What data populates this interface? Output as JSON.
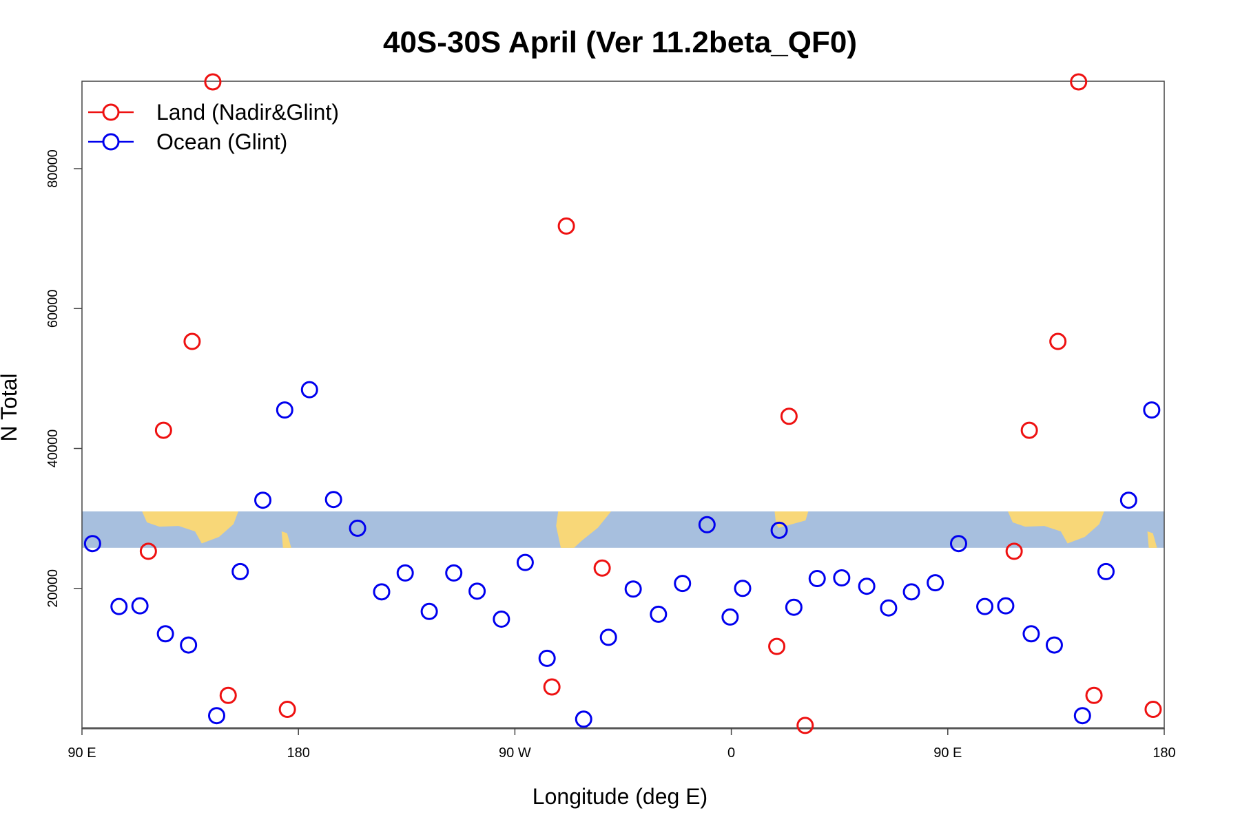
{
  "chart_data": {
    "type": "scatter",
    "title": "40S-30S April (Ver 11.2beta_QF0)",
    "xlabel": "Longitude (deg E)",
    "ylabel": "N Total",
    "x_ticks": [
      {
        "value": 90,
        "label": "90 E"
      },
      {
        "value": 180,
        "label": "180"
      },
      {
        "value": 270,
        "label": "90 W"
      },
      {
        "value": 360,
        "label": "0"
      },
      {
        "value": 450,
        "label": "90 E"
      },
      {
        "value": 540,
        "label": "180"
      }
    ],
    "y_ticks": [
      {
        "value": 20000,
        "label": "20000"
      },
      {
        "value": 40000,
        "label": "40000"
      },
      {
        "value": 60000,
        "label": "60000"
      },
      {
        "value": 80000,
        "label": "80000"
      }
    ],
    "xlim": [
      90,
      540
    ],
    "ylim": [
      0,
      92500
    ],
    "legend_position": "top-left",
    "colors": {
      "land": "#ee1111",
      "ocean": "#0000ee",
      "map_ocean": "#a7bfde",
      "map_land": "#f8d778"
    },
    "map_band": {
      "y_range": [
        25800,
        31000
      ]
    },
    "series": [
      {
        "name": "Land (Nadir&Glint)",
        "color": "#ee1111",
        "points": [
          [
            117.6,
            25300
          ],
          [
            123.9,
            42600
          ],
          [
            135.8,
            55300
          ],
          [
            144.4,
            92400
          ],
          [
            150.8,
            4700
          ],
          [
            175.4,
            2700
          ],
          [
            291.4,
            71800
          ],
          [
            285.4,
            5900
          ],
          [
            306.3,
            22900
          ],
          [
            378.9,
            11700
          ],
          [
            384.0,
            44600
          ],
          [
            390.7,
            400
          ],
          [
            477.6,
            25300
          ],
          [
            483.9,
            42600
          ],
          [
            495.8,
            55300
          ],
          [
            504.4,
            92400
          ],
          [
            510.8,
            4700
          ],
          [
            535.4,
            2700
          ]
        ]
      },
      {
        "name": "Ocean (Glint)",
        "color": "#0000ee",
        "points": [
          [
            94.4,
            26400
          ],
          [
            105.4,
            17400
          ],
          [
            114.1,
            17500
          ],
          [
            124.7,
            13500
          ],
          [
            134.3,
            11900
          ],
          [
            146.0,
            1800
          ],
          [
            155.8,
            22400
          ],
          [
            165.2,
            32600
          ],
          [
            174.3,
            45500
          ],
          [
            184.6,
            48400
          ],
          [
            194.6,
            32700
          ],
          [
            204.6,
            28600
          ],
          [
            214.6,
            19500
          ],
          [
            224.4,
            22200
          ],
          [
            234.4,
            16700
          ],
          [
            244.6,
            22200
          ],
          [
            254.3,
            19600
          ],
          [
            264.4,
            15600
          ],
          [
            274.3,
            23700
          ],
          [
            283.4,
            10000
          ],
          [
            298.6,
            1300
          ],
          [
            308.9,
            13000
          ],
          [
            319.2,
            19900
          ],
          [
            329.7,
            16300
          ],
          [
            339.7,
            20700
          ],
          [
            349.9,
            29100
          ],
          [
            359.5,
            15900
          ],
          [
            364.7,
            20000
          ],
          [
            379.9,
            28300
          ],
          [
            386.0,
            17300
          ],
          [
            395.7,
            21400
          ],
          [
            405.9,
            21500
          ],
          [
            416.3,
            20300
          ],
          [
            425.4,
            17200
          ],
          [
            434.9,
            19500
          ],
          [
            444.8,
            20800
          ],
          [
            454.5,
            26400
          ],
          [
            465.4,
            17400
          ],
          [
            474.1,
            17500
          ],
          [
            484.7,
            13500
          ],
          [
            494.3,
            11900
          ],
          [
            506.0,
            1800
          ],
          [
            515.8,
            22400
          ],
          [
            525.2,
            32600
          ],
          [
            534.8,
            45500
          ]
        ]
      }
    ]
  }
}
